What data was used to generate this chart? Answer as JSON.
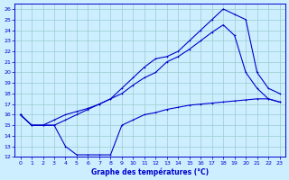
{
  "xlabel": "Graphe des températures (°C)",
  "bg_color": "#cceeff",
  "grid_color": "#99cccc",
  "line_color": "#0000cc",
  "xlim": [
    -0.5,
    23.5
  ],
  "ylim": [
    12,
    26.5
  ],
  "xticks": [
    0,
    1,
    2,
    3,
    4,
    5,
    6,
    7,
    8,
    9,
    10,
    11,
    12,
    13,
    14,
    15,
    16,
    17,
    18,
    19,
    20,
    21,
    22,
    23
  ],
  "yticks": [
    12,
    13,
    14,
    15,
    16,
    17,
    18,
    19,
    20,
    21,
    22,
    23,
    24,
    25,
    26
  ],
  "line1_x": [
    0,
    1,
    2,
    3,
    4,
    5,
    6,
    7,
    8,
    9,
    10,
    11,
    12,
    13,
    14,
    15,
    16,
    17,
    18,
    19,
    20,
    21,
    22,
    23
  ],
  "line1_y": [
    16.0,
    15.0,
    15.0,
    15.0,
    13.0,
    12.2,
    12.2,
    12.2,
    12.2,
    15.0,
    15.5,
    16.0,
    16.2,
    16.5,
    16.7,
    16.9,
    17.0,
    17.1,
    17.2,
    17.3,
    17.4,
    17.5,
    17.5,
    17.2
  ],
  "line2_x": [
    0,
    1,
    2,
    3,
    4,
    5,
    6,
    7,
    8,
    9,
    10,
    11,
    12,
    13,
    14,
    15,
    16,
    17,
    18,
    19,
    20,
    21,
    22,
    23
  ],
  "line2_y": [
    16.0,
    15.0,
    15.0,
    15.0,
    15.5,
    16.0,
    16.5,
    17.0,
    17.5,
    18.5,
    19.5,
    20.5,
    21.3,
    21.5,
    22.0,
    23.0,
    24.0,
    25.0,
    26.0,
    25.5,
    25.0,
    20.0,
    18.5,
    18.0
  ],
  "line3_x": [
    0,
    1,
    2,
    3,
    4,
    5,
    6,
    7,
    8,
    9,
    10,
    11,
    12,
    13,
    14,
    15,
    16,
    17,
    18,
    19,
    20,
    21,
    22,
    23
  ],
  "line3_y": [
    16.0,
    15.0,
    15.0,
    15.5,
    16.0,
    16.3,
    16.6,
    17.0,
    17.5,
    18.0,
    18.8,
    19.5,
    20.0,
    21.0,
    21.5,
    22.2,
    23.0,
    23.8,
    24.5,
    23.5,
    20.0,
    18.5,
    17.5,
    17.2
  ]
}
